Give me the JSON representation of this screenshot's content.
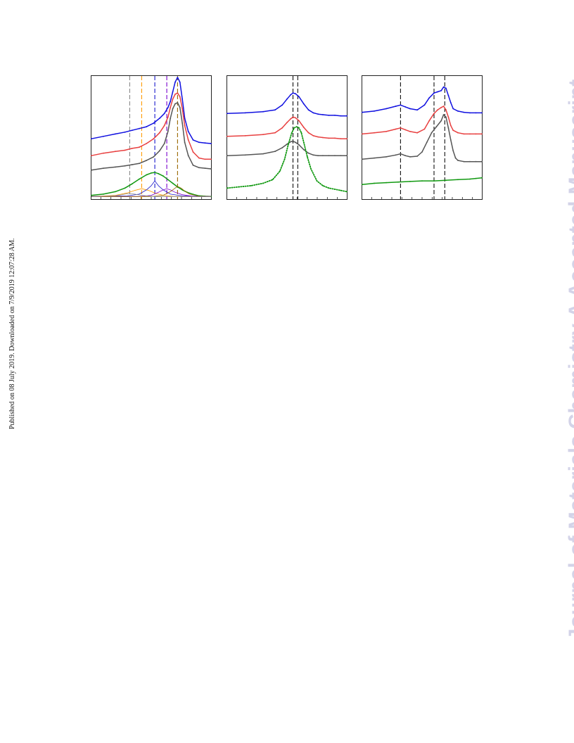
{
  "page": {
    "side_note": "Published on 08 July 2019. Downloaded on 7/9/2019 12:07:28 AM.",
    "watermark": "Journal of Materials Chemistry A Accepted Manuscript",
    "watermark_color": "#d3d3e8"
  },
  "chart_data": [
    {
      "type": "line",
      "panel": "left",
      "title": "",
      "xlabel": "",
      "ylabel": "",
      "grid": false,
      "xlim": [
        0,
        100
      ],
      "ylim": [
        0,
        100
      ],
      "ref_lines": [
        {
          "x": 32,
          "color": "#888888"
        },
        {
          "x": 42,
          "color": "#ff9900"
        },
        {
          "x": 53,
          "color": "#1a1acc"
        },
        {
          "x": 63,
          "color": "#7a00cc"
        },
        {
          "x": 72,
          "color": "#996600"
        }
      ],
      "series": [
        {
          "color": "#1010e0",
          "style": "line",
          "x": [
            0,
            10,
            20,
            28,
            34,
            40,
            46,
            52,
            57,
            61,
            64,
            66,
            68,
            70,
            72,
            74,
            76,
            78,
            81,
            85,
            90,
            95,
            100
          ],
          "y": [
            49,
            51,
            53,
            54.5,
            56,
            57.5,
            59,
            62,
            66,
            70,
            75,
            80,
            88,
            96,
            100,
            96,
            82,
            66,
            55,
            48,
            46,
            45.5,
            45
          ]
        },
        {
          "color": "#e84040",
          "style": "line",
          "x": [
            0,
            10,
            20,
            28,
            34,
            40,
            46,
            52,
            57,
            61,
            64,
            66,
            68,
            70,
            72,
            74,
            76,
            78,
            81,
            85,
            90,
            95,
            100
          ],
          "y": [
            35,
            37,
            38.5,
            39.5,
            41,
            42,
            45,
            49,
            54,
            60,
            67,
            75,
            82,
            86,
            87,
            84,
            74,
            60,
            48,
            38,
            33,
            32,
            32
          ]
        },
        {
          "color": "#555555",
          "style": "line",
          "x": [
            0,
            10,
            20,
            28,
            34,
            40,
            46,
            52,
            57,
            61,
            64,
            66,
            68,
            70,
            72,
            74,
            76,
            78,
            81,
            85,
            90,
            95,
            100
          ],
          "y": [
            23,
            24.5,
            25.5,
            26.5,
            27.5,
            28.5,
            31,
            34,
            39,
            45,
            55,
            66,
            74,
            78,
            79,
            75,
            62,
            46,
            35,
            27,
            25,
            24.5,
            24
          ]
        },
        {
          "color": "#119911",
          "style": "line",
          "x": [
            0,
            10,
            20,
            28,
            34,
            40,
            46,
            50,
            53,
            56,
            60,
            64,
            68,
            72,
            76,
            80,
            85,
            90,
            95,
            100
          ],
          "y": [
            2,
            3,
            5,
            8,
            11.5,
            15.5,
            19,
            20.5,
            21,
            20,
            18,
            15,
            12,
            9,
            6.5,
            4.5,
            2.8,
            1.6,
            1.2,
            1
          ]
        },
        {
          "color": "#ff9900",
          "style": "thin",
          "x": [
            0,
            20,
            30,
            36,
            42,
            48,
            54,
            60,
            70,
            100
          ],
          "y": [
            1,
            2,
            4,
            6,
            7.5,
            6,
            3.5,
            2,
            1,
            1
          ]
        },
        {
          "color": "#1a1acc",
          "style": "thin",
          "x": [
            0,
            30,
            40,
            46,
            50,
            53,
            56,
            60,
            66,
            76,
            100
          ],
          "y": [
            1,
            1.5,
            3,
            6.5,
            10,
            14,
            10,
            6.5,
            3,
            1.5,
            1
          ]
        },
        {
          "color": "#7a00cc",
          "style": "thin",
          "x": [
            0,
            40,
            50,
            56,
            60,
            63,
            66,
            70,
            76,
            86,
            100
          ],
          "y": [
            1,
            1,
            2,
            4.5,
            6.5,
            7.5,
            6.5,
            4.5,
            2.5,
            1,
            1
          ]
        },
        {
          "color": "#996600",
          "style": "thin",
          "x": [
            0,
            50,
            60,
            66,
            70,
            72,
            75,
            78,
            82,
            90,
            100
          ],
          "y": [
            1,
            1,
            2,
            5,
            8,
            9.5,
            8,
            5.5,
            3,
            1.2,
            1
          ]
        },
        {
          "color": "#888888",
          "style": "thin",
          "x": [
            0,
            20,
            28,
            32,
            36,
            42,
            52,
            100
          ],
          "y": [
            1,
            1.5,
            3,
            3.5,
            3,
            2,
            1,
            1
          ]
        }
      ]
    },
    {
      "type": "line",
      "panel": "middle",
      "title": "",
      "xlabel": "",
      "ylabel": "",
      "grid": false,
      "xlim": [
        0,
        100
      ],
      "ylim": [
        0,
        100
      ],
      "ref_lines": [
        {
          "x": 55,
          "color": "#111111"
        },
        {
          "x": 59,
          "color": "#111111"
        }
      ],
      "series": [
        {
          "color": "#1010e0",
          "style": "line",
          "x": [
            0,
            15,
            30,
            40,
            46,
            50,
            53,
            55,
            57,
            60,
            64,
            68,
            72,
            76,
            80,
            85,
            90,
            95,
            100
          ],
          "y": [
            70,
            70.5,
            71.5,
            73,
            77,
            82,
            85.5,
            87,
            86.5,
            84,
            78,
            73,
            70.5,
            69.5,
            69,
            68.5,
            68.5,
            68,
            68
          ]
        },
        {
          "color": "#e84040",
          "style": "line",
          "x": [
            0,
            15,
            30,
            40,
            46,
            50,
            53,
            55,
            57,
            60,
            64,
            68,
            72,
            76,
            80,
            85,
            90,
            95,
            100
          ],
          "y": [
            51,
            51.5,
            52.5,
            54,
            58,
            62.5,
            65.5,
            67,
            66.5,
            64,
            58.5,
            54,
            51.5,
            50.5,
            50,
            49.5,
            49.5,
            49,
            49
          ]
        },
        {
          "color": "#555555",
          "style": "line",
          "x": [
            0,
            15,
            30,
            40,
            46,
            50,
            53,
            55,
            57,
            60,
            64,
            68,
            72,
            76,
            80,
            85,
            90,
            95,
            100
          ],
          "y": [
            35,
            35.5,
            36.5,
            38.5,
            41.5,
            44.5,
            46.5,
            47,
            46,
            44,
            40,
            37,
            35.5,
            35,
            35,
            35,
            35,
            35,
            35
          ]
        },
        {
          "color": "#119911",
          "style": "dots",
          "x": [
            0,
            10,
            20,
            30,
            38,
            44,
            48,
            51,
            54,
            56,
            58,
            60,
            62,
            64,
            67,
            70,
            75,
            80,
            85,
            90,
            95,
            100
          ],
          "y": [
            8,
            9,
            10,
            12,
            15,
            22,
            32,
            44,
            54,
            58,
            59,
            58,
            54,
            46,
            34,
            24,
            14,
            10,
            8,
            7,
            6,
            5
          ]
        }
      ]
    },
    {
      "type": "line",
      "panel": "right",
      "title": "",
      "xlabel": "",
      "ylabel": "",
      "grid": false,
      "xlim": [
        0,
        100
      ],
      "ylim": [
        0,
        100
      ],
      "ref_lines": [
        {
          "x": 32,
          "color": "#111111"
        },
        {
          "x": 60,
          "color": "#111111"
        },
        {
          "x": 69,
          "color": "#111111"
        }
      ],
      "series": [
        {
          "color": "#1010e0",
          "style": "line",
          "x": [
            0,
            10,
            20,
            28,
            32,
            36,
            40,
            46,
            52,
            56,
            60,
            63,
            66,
            68,
            70,
            72,
            74,
            76,
            80,
            85,
            90,
            95,
            100
          ],
          "y": [
            71,
            72,
            74,
            76,
            77,
            75.5,
            74,
            73,
            77,
            83,
            87,
            88,
            89,
            92,
            91,
            85,
            79,
            74,
            72,
            71,
            70.5,
            70.5,
            70.5
          ]
        },
        {
          "color": "#e84040",
          "style": "line",
          "x": [
            0,
            10,
            20,
            28,
            32,
            36,
            40,
            46,
            52,
            56,
            60,
            63,
            66,
            68,
            70,
            72,
            74,
            76,
            80,
            85,
            90,
            95,
            100
          ],
          "y": [
            53,
            54,
            55,
            57,
            58,
            56.5,
            55,
            54,
            57,
            64,
            70,
            73,
            75,
            76,
            73,
            67,
            60,
            56,
            54,
            53,
            53,
            53,
            53
          ]
        },
        {
          "color": "#555555",
          "style": "line",
          "x": [
            0,
            10,
            20,
            28,
            32,
            36,
            40,
            46,
            50,
            54,
            58,
            62,
            66,
            68,
            70,
            72,
            74,
            76,
            78,
            80,
            85,
            90,
            95,
            100
          ],
          "y": [
            32,
            33,
            34,
            35.5,
            36.5,
            35,
            34,
            34.5,
            38,
            46,
            54,
            59,
            64,
            69,
            67,
            58,
            48,
            39,
            33,
            31,
            30,
            30,
            30,
            30
          ]
        },
        {
          "color": "#119911",
          "style": "line",
          "x": [
            0,
            10,
            20,
            30,
            40,
            50,
            60,
            70,
            80,
            90,
            95,
            100
          ],
          "y": [
            11,
            12,
            12.5,
            13,
            13.5,
            14,
            14,
            14.5,
            15,
            15.5,
            16,
            16.5
          ]
        }
      ]
    }
  ]
}
